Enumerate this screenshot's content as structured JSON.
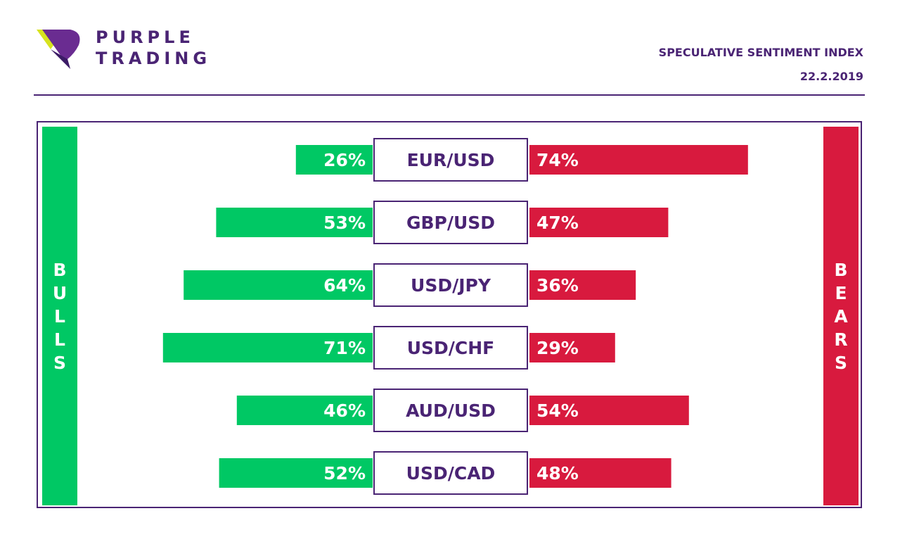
{
  "logo": {
    "line1": "PURPLE",
    "line2": "TRADING"
  },
  "header": {
    "title": "SPECULATIVE SENTIMENT INDEX",
    "date": "22.2.2019"
  },
  "colors": {
    "bull": "#00c864",
    "bear": "#d81a3e",
    "brand": "#4a2474",
    "logo_yellow": "#d7e31f"
  },
  "side_labels": {
    "bulls": "BULLS",
    "bears": "BEARS"
  },
  "chart_data": {
    "type": "bar",
    "categories": [
      "EUR/USD",
      "GBP/USD",
      "USD/JPY",
      "USD/CHF",
      "AUD/USD",
      "USD/CAD"
    ],
    "series": [
      {
        "name": "BULLS",
        "values": [
          26,
          53,
          64,
          71,
          46,
          52
        ],
        "labels": [
          "26%",
          "53%",
          "64%",
          "71%",
          "46%",
          "52%"
        ]
      },
      {
        "name": "BEARS",
        "values": [
          74,
          47,
          36,
          29,
          54,
          48
        ],
        "labels": [
          "74%",
          "47%",
          "36%",
          "29%",
          "54%",
          "48%"
        ]
      }
    ]
  }
}
